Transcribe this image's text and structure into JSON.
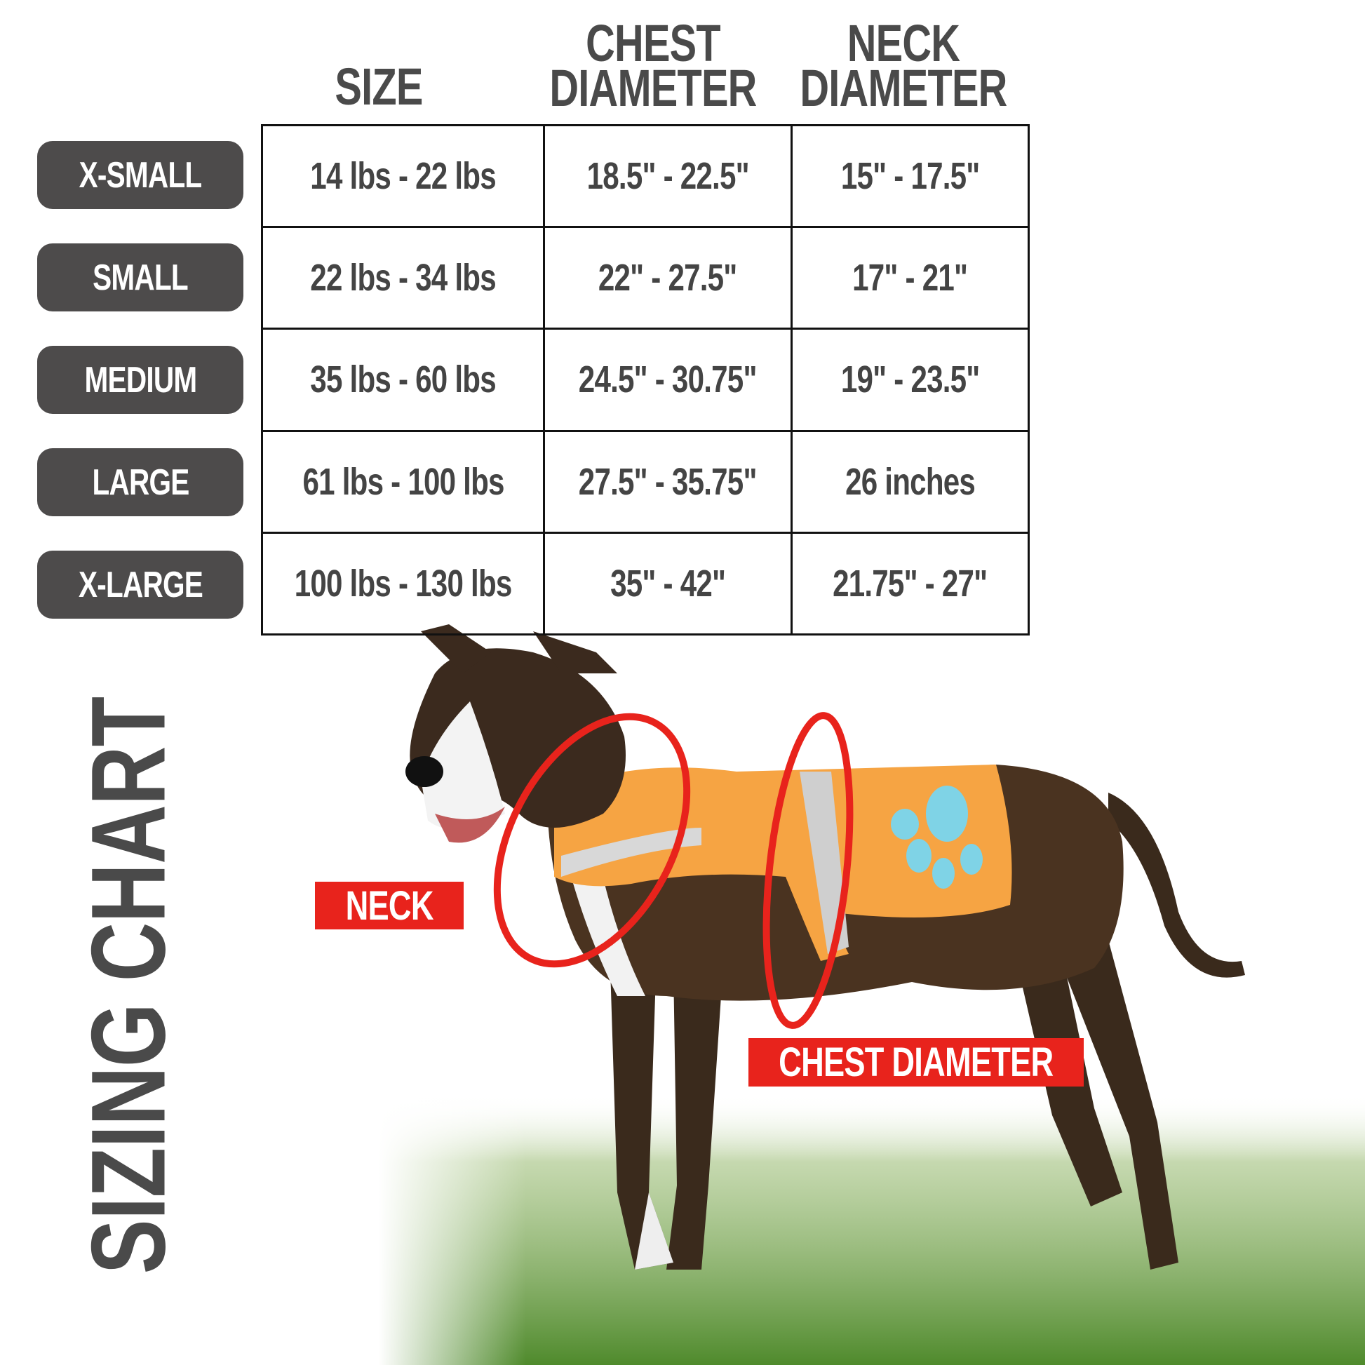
{
  "title": "SIZING CHART",
  "headers": {
    "size": "SIZE",
    "chest": [
      "CHEST",
      "DIAMETER"
    ],
    "neck": [
      "NECK",
      "DIAMETER"
    ]
  },
  "rows": [
    {
      "label": "X-SMALL",
      "weight": "14 lbs - 22 lbs",
      "chest": "18.5\" - 22.5\"",
      "neck": "15\" - 17.5\""
    },
    {
      "label": "SMALL",
      "weight": "22 lbs - 34 lbs",
      "chest": "22\" - 27.5\"",
      "neck": "17\" - 21\""
    },
    {
      "label": "MEDIUM",
      "weight": "35 lbs - 60 lbs",
      "chest": "24.5\" - 30.75\"",
      "neck": "19\" - 23.5\""
    },
    {
      "label": "LARGE",
      "weight": "61 lbs - 100 lbs",
      "chest": "27.5\" - 35.75\"",
      "neck": "26 inches"
    },
    {
      "label": "X-LARGE",
      "weight": "100 lbs - 130 lbs",
      "chest": "35\" - 42\"",
      "neck": "21.75\" - 27\""
    }
  ],
  "labels": {
    "neck": "NECK",
    "chest": "CHEST DIAMETER"
  },
  "colors": {
    "pill": "#4d4b4b",
    "text": "#4a4a4a",
    "accent_red": "#e8231c",
    "vest_orange": "#f6a443",
    "paw_blue": "#7fd3e6"
  }
}
